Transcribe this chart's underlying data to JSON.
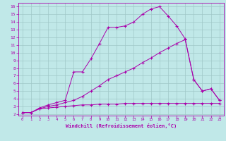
{
  "xlabel": "Windchill (Refroidissement éolien,°C)",
  "bg_color": "#c0e8e8",
  "grid_color": "#a0c8c8",
  "line_color": "#aa00aa",
  "spine_color": "#aa00aa",
  "xlim": [
    -0.5,
    23.5
  ],
  "ylim": [
    1.8,
    16.5
  ],
  "xticks": [
    0,
    1,
    2,
    3,
    4,
    5,
    6,
    7,
    8,
    9,
    10,
    11,
    12,
    13,
    14,
    15,
    16,
    17,
    18,
    19,
    20,
    21,
    22,
    23
  ],
  "yticks": [
    2,
    3,
    4,
    5,
    6,
    7,
    8,
    9,
    10,
    11,
    12,
    13,
    14,
    15,
    16
  ],
  "curve1_x": [
    0,
    1,
    2,
    3,
    4,
    5,
    6,
    7,
    8,
    9,
    10,
    11,
    12,
    13,
    14,
    15,
    16,
    17,
    18,
    19,
    20,
    21,
    22,
    23
  ],
  "curve1_y": [
    2.2,
    2.2,
    2.7,
    2.8,
    2.9,
    3.0,
    3.1,
    3.2,
    3.2,
    3.3,
    3.3,
    3.3,
    3.4,
    3.4,
    3.4,
    3.4,
    3.4,
    3.4,
    3.4,
    3.4,
    3.4,
    3.4,
    3.4,
    3.4
  ],
  "curve2_x": [
    0,
    1,
    2,
    3,
    4,
    5,
    6,
    7,
    8,
    9,
    10,
    11,
    12,
    13,
    14,
    15,
    16,
    17,
    18,
    19,
    20,
    21,
    22,
    23
  ],
  "curve2_y": [
    2.2,
    2.2,
    2.7,
    3.0,
    3.2,
    3.5,
    3.8,
    4.3,
    5.0,
    5.7,
    6.5,
    7.0,
    7.5,
    8.0,
    8.7,
    9.3,
    10.0,
    10.6,
    11.2,
    11.7,
    6.5,
    5.0,
    5.3,
    3.8
  ],
  "curve3_x": [
    0,
    1,
    2,
    3,
    4,
    5,
    6,
    7,
    8,
    9,
    10,
    11,
    12,
    13,
    14,
    15,
    16,
    17,
    18,
    19,
    20,
    21,
    22,
    23
  ],
  "curve3_y": [
    2.2,
    2.2,
    2.8,
    3.2,
    3.5,
    3.8,
    7.5,
    7.5,
    9.2,
    11.2,
    13.3,
    13.3,
    13.5,
    14.0,
    15.0,
    15.7,
    16.0,
    14.8,
    13.5,
    11.8,
    6.5,
    5.0,
    5.3,
    3.8
  ]
}
